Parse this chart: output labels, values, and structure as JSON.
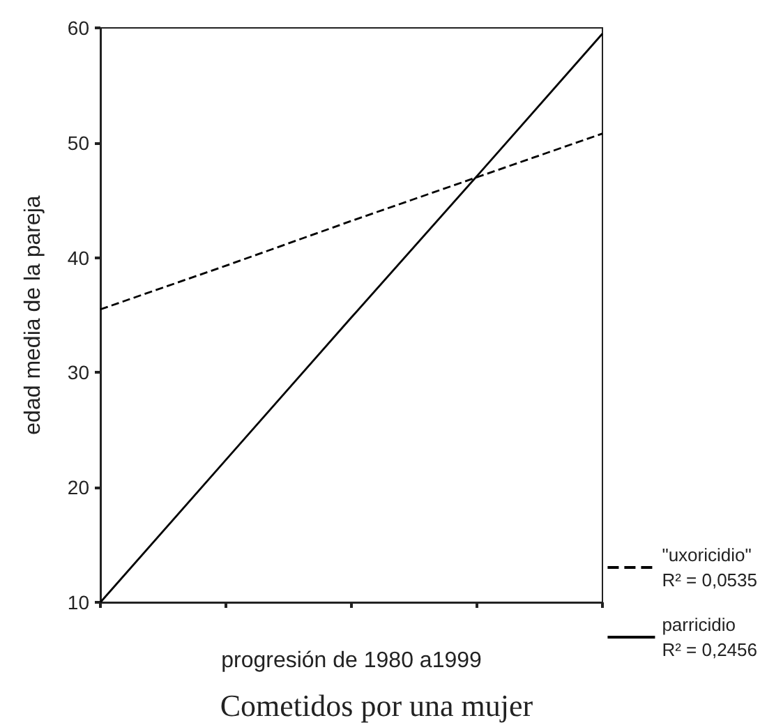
{
  "chart_data": {
    "type": "line",
    "title": "Cometidos por una mujer",
    "xlabel": "progresión de 1980 a1999",
    "ylabel": "edad media de la pareja",
    "categories": [
      null,
      null,
      null,
      null,
      null
    ],
    "ylim": [
      10,
      60
    ],
    "yticks": [
      10,
      20,
      30,
      40,
      50,
      60
    ],
    "series": [
      {
        "name": "\"uxoricidio\"\nR² = 0,0535",
        "color": "#000000",
        "values": [
          35.5,
          39.3,
          43.2,
          47,
          50.8
        ],
        "line_style": "dashed"
      },
      {
        "name": "parricidio\nR² = 0,2456",
        "color": "#000000",
        "values": [
          10,
          22.4,
          34.8,
          47.1,
          59.5
        ],
        "line_style": "solid"
      }
    ],
    "marker": "none",
    "grid": false,
    "legend": "right"
  }
}
